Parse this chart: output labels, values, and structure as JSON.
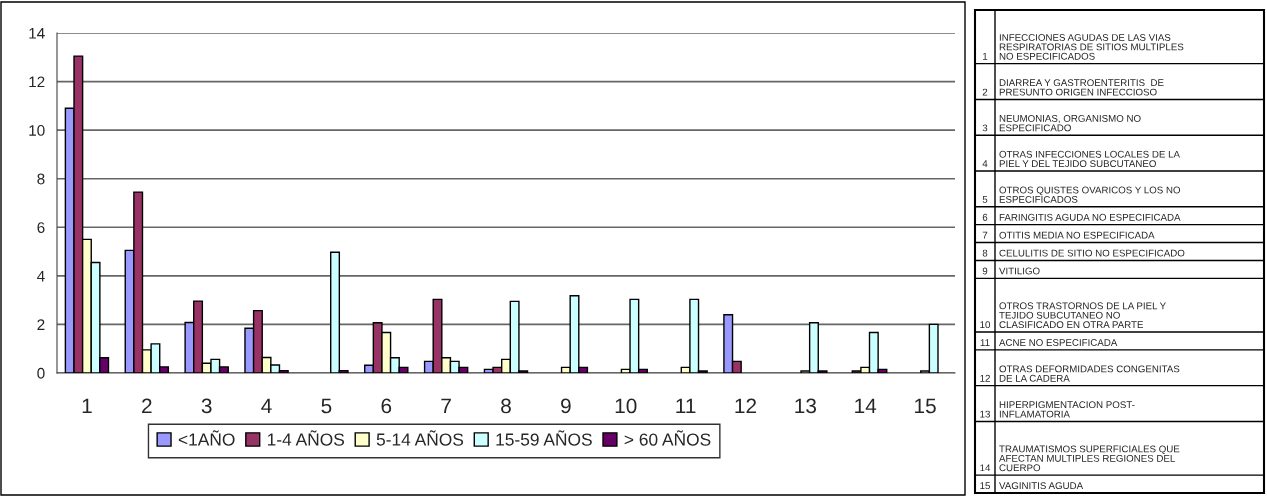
{
  "chart_data": {
    "type": "bar",
    "categories": [
      "1",
      "2",
      "3",
      "4",
      "5",
      "6",
      "7",
      "8",
      "9",
      "10",
      "11",
      "12",
      "13",
      "14",
      "15"
    ],
    "series": [
      {
        "name": "<1AÑO",
        "color": "#9999ff",
        "values": [
          10.9,
          5.05,
          2.08,
          1.84,
          null,
          0.32,
          0.48,
          0.15,
          null,
          null,
          null,
          2.4,
          null,
          null,
          null
        ]
      },
      {
        "name": "1-4 AÑOS",
        "color": "#993366",
        "values": [
          13.05,
          7.45,
          2.96,
          2.57,
          null,
          2.07,
          3.03,
          0.23,
          null,
          null,
          null,
          0.48,
          null,
          0.08,
          null
        ]
      },
      {
        "name": "5-14 AÑOS",
        "color": "#ffffcc",
        "values": [
          5.5,
          0.95,
          0.4,
          0.64,
          null,
          1.67,
          0.63,
          0.56,
          0.23,
          0.15,
          0.23,
          null,
          0.08,
          0.23,
          0.08
        ]
      },
      {
        "name": "15-59 AÑOS",
        "color": "#ccffff",
        "values": [
          4.55,
          1.2,
          0.56,
          0.33,
          4.97,
          0.63,
          0.48,
          2.95,
          3.18,
          3.03,
          3.03,
          null,
          2.07,
          1.67,
          2.0
        ]
      },
      {
        "name": "> 60 AÑOS",
        "color": "#660066",
        "values": [
          0.63,
          0.25,
          0.25,
          0.1,
          0.1,
          0.23,
          0.23,
          0.08,
          0.23,
          0.15,
          0.08,
          null,
          0.08,
          0.15,
          null
        ]
      }
    ],
    "ylim": [
      0,
      14
    ],
    "yticks": [
      0,
      2,
      4,
      6,
      8,
      10,
      12,
      14
    ],
    "grid": "y",
    "legend": "bottom",
    "annotations": [
      "INFECCIONES AGUDAS DE LAS VIAS\nRESPIRATORIAS DE SITIOS MULTIPLES\nNO ESPECIFICADOS",
      "DIARREA Y GASTROENTERITIS  DE\nPRESUNTO ORIGEN INFECCIOSO",
      "NEUMONIAS, ORGANISMO NO\nESPECIFICADO",
      "OTRAS INFECCIONES LOCALES DE LA\nPIEL Y DEL TEJIDO SUBCUTANEO",
      "OTROS QUISTES OVARICOS Y LOS NO\nESPECIFICADOS",
      "FARINGITIS AGUDA NO ESPECIFICADA",
      "OTITIS MEDIA NO ESPECIFICADA",
      "CELULITIS DE SITIO NO ESPECIFICADO",
      "VITILIGO",
      "OTROS TRASTORNOS DE LA PIEL Y\nTEJIDO SUBCUTANEO NO\nCLASIFICADO EN OTRA PARTE",
      "ACNE NO ESPECIFICADA",
      "OTRAS DEFORMIDADES CONGENITAS\nDE LA CADERA",
      "HIPERPIGMENTACION POST-\nINFLAMATORIA",
      "TRAUMATISMOS SUPERFICIALES QUE\nAFECTAN MULTIPLES REGIONES DEL\nCUERPO",
      "VAGINITIS AGUDA"
    ]
  }
}
